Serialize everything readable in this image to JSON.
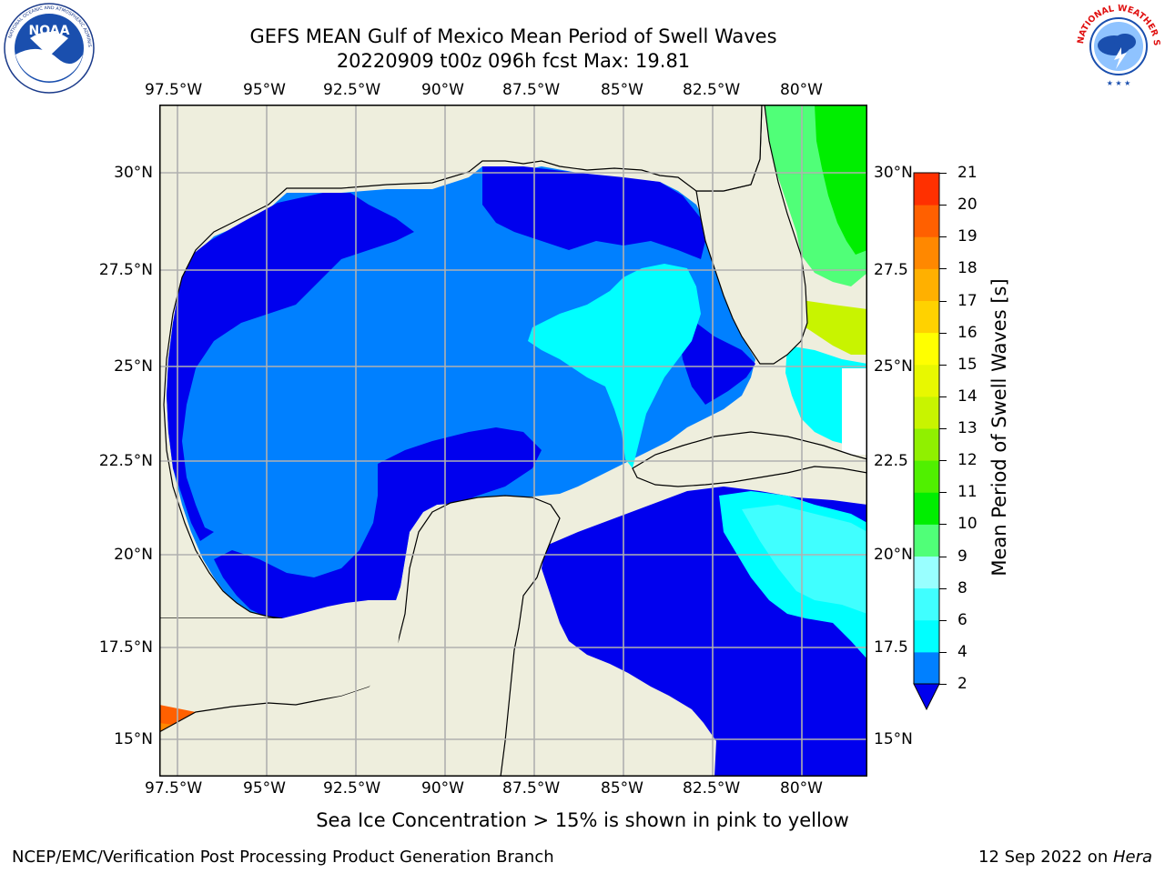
{
  "title": {
    "line1": "GEFS MEAN Gulf of Mexico Mean Period of Swell Waves",
    "line2": "20220909 t00z 096h fcst   Max: 19.81"
  },
  "map": {
    "lon_ticks": [
      "97.5°W",
      "95°W",
      "92.5°W",
      "90°W",
      "87.5°W",
      "85°W",
      "82.5°W",
      "80°W"
    ],
    "lat_ticks_left": [
      "30°N",
      "27.5°N",
      "25°N",
      "22.5°N",
      "20°N",
      "17.5°N",
      "15°N"
    ],
    "lat_ticks_right": [
      "30°N",
      "27.5",
      "25°N",
      "22.5",
      "20°N",
      "17.5",
      "15°N"
    ],
    "lon_range": [
      -98,
      -78.2
    ],
    "lat_range": [
      14,
      31.8
    ],
    "colors": {
      "land": "#eeeedd",
      "deep_blue": "#0000ee",
      "mid_blue": "#0080ff",
      "cyan": "#00ffff",
      "grid": "#b0b0b0"
    }
  },
  "colorbar": {
    "label": "Mean Period of Swell Waves [s]",
    "ticks": [
      "2",
      "4",
      "6",
      "8",
      "9",
      "10",
      "11",
      "12",
      "13",
      "14",
      "15",
      "16",
      "17",
      "18",
      "19",
      "20",
      "21"
    ],
    "colors": [
      "#0080ff",
      "#00ffff",
      "#40ffff",
      "#99ffff",
      "#50ff78",
      "#00ee00",
      "#50f000",
      "#90f000",
      "#c8f400",
      "#e8f800",
      "#ffff00",
      "#ffd200",
      "#ffb000",
      "#ff8800",
      "#ff6000",
      "#ff3000",
      "#ff0000"
    ]
  },
  "logos": {
    "noaa": "NOAA",
    "nws": "NATIONAL WEATHER SERVICE"
  },
  "note": "Sea Ice Concentration > 15% is shown in pink to yellow",
  "footer": {
    "left": "NCEP/EMC/Verification Post Processing Product Generation Branch",
    "date": "12 Sep 2022 on ",
    "machine": "Hera"
  }
}
